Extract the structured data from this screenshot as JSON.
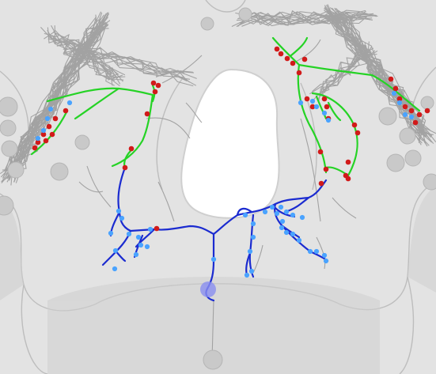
{
  "image": {
    "description_tag": "neuron-morphology-render",
    "colors": {
      "background": "#d9d9d9",
      "mesh_fill": "#e6e6e6",
      "mesh_edge": "#bdbdbd",
      "hole": "#ffffff",
      "gray_neurite": "#9a9a9a",
      "soma_gray": "#c8c8c8",
      "axon_blue": "#1f2fd1",
      "dendrite_green": "#22d822",
      "synapse_red": "#d11a1a",
      "synapse_blue": "#4aa3ff",
      "soma_highlight": "#8a8ef0"
    }
  }
}
